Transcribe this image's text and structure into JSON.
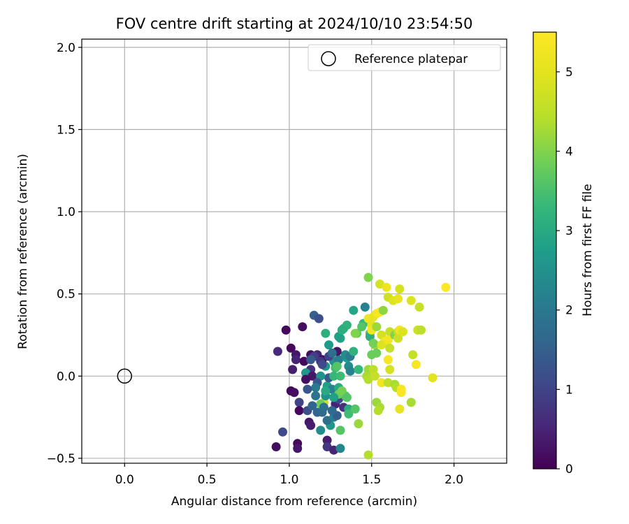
{
  "chart_data": {
    "type": "scatter",
    "title": "FOV centre drift starting at 2024/10/10 23:54:50",
    "xlabel": "Angular distance from reference (arcmin)",
    "ylabel": "Rotation from reference (arcmin)",
    "xlim": [
      -0.26,
      2.32
    ],
    "ylim": [
      -0.53,
      2.05
    ],
    "xticks": [
      0.0,
      0.5,
      1.0,
      1.5,
      2.0
    ],
    "xtick_labels": [
      "0.0",
      "0.5",
      "1.0",
      "1.5",
      "2.0"
    ],
    "yticks": [
      -0.5,
      0.0,
      0.5,
      1.0,
      1.5,
      2.0
    ],
    "ytick_labels": [
      "−0.5",
      "0.0",
      "0.5",
      "1.0",
      "1.5",
      "2.0"
    ],
    "grid": true,
    "legend": {
      "placement": "top-right",
      "entries": [
        "Reference platepar"
      ]
    },
    "reference_point": {
      "x": 0.0,
      "y": 0.0,
      "label": "Reference platepar"
    },
    "colorbar": {
      "label": "Hours from first FF file",
      "range": [
        0,
        5.5
      ],
      "ticks": [
        0,
        1,
        2,
        3,
        4,
        5
      ],
      "tick_labels": [
        "0",
        "1",
        "2",
        "3",
        "4",
        "5"
      ],
      "colormap": "viridis"
    },
    "points": [
      {
        "x": 0.98,
        "y": 0.28,
        "c": 0.1
      },
      {
        "x": 1.08,
        "y": 0.3,
        "c": 0.2
      },
      {
        "x": 1.01,
        "y": 0.17,
        "c": 0.1
      },
      {
        "x": 0.93,
        "y": 0.15,
        "c": 0.6
      },
      {
        "x": 1.04,
        "y": 0.13,
        "c": 0.3
      },
      {
        "x": 1.04,
        "y": 0.1,
        "c": 0.5
      },
      {
        "x": 1.02,
        "y": 0.04,
        "c": 0.4
      },
      {
        "x": 1.13,
        "y": 0.13,
        "c": 0.2
      },
      {
        "x": 1.09,
        "y": 0.09,
        "c": 0.1
      },
      {
        "x": 1.17,
        "y": 0.13,
        "c": 0.5
      },
      {
        "x": 1.2,
        "y": 0.1,
        "c": 0.2
      },
      {
        "x": 1.15,
        "y": 0.37,
        "c": 1.5
      },
      {
        "x": 1.18,
        "y": 0.35,
        "c": 1.2
      },
      {
        "x": 1.15,
        "y": 0.12,
        "c": 0.9
      },
      {
        "x": 1.19,
        "y": 0.09,
        "c": 0.8
      },
      {
        "x": 1.13,
        "y": 0.04,
        "c": 0.7
      },
      {
        "x": 1.1,
        "y": 0.02,
        "c": 2.6
      },
      {
        "x": 1.14,
        "y": 0.0,
        "c": 0.3
      },
      {
        "x": 1.1,
        "y": -0.02,
        "c": 0.2
      },
      {
        "x": 1.01,
        "y": -0.09,
        "c": 0.1
      },
      {
        "x": 1.03,
        "y": -0.1,
        "c": 0.2
      },
      {
        "x": 1.06,
        "y": -0.16,
        "c": 1.0
      },
      {
        "x": 1.06,
        "y": -0.21,
        "c": 0.1
      },
      {
        "x": 1.11,
        "y": -0.21,
        "c": 1.2
      },
      {
        "x": 1.12,
        "y": -0.28,
        "c": 0.3
      },
      {
        "x": 1.13,
        "y": -0.3,
        "c": 0.4
      },
      {
        "x": 0.96,
        "y": -0.34,
        "c": 1.1
      },
      {
        "x": 0.92,
        "y": -0.43,
        "c": 0.2
      },
      {
        "x": 1.05,
        "y": -0.41,
        "c": 0.1
      },
      {
        "x": 1.05,
        "y": -0.44,
        "c": 0.3
      },
      {
        "x": 1.17,
        "y": -0.22,
        "c": 1.6
      },
      {
        "x": 1.2,
        "y": -0.22,
        "c": 1.7
      },
      {
        "x": 1.19,
        "y": -0.33,
        "c": 2.4
      },
      {
        "x": 1.23,
        "y": -0.39,
        "c": 0.4
      },
      {
        "x": 1.23,
        "y": -0.43,
        "c": 0.8
      },
      {
        "x": 1.27,
        "y": -0.45,
        "c": 0.5
      },
      {
        "x": 1.31,
        "y": -0.44,
        "c": 2.3
      },
      {
        "x": 1.31,
        "y": -0.33,
        "c": 3.6
      },
      {
        "x": 1.25,
        "y": -0.3,
        "c": 2.6
      },
      {
        "x": 1.23,
        "y": -0.27,
        "c": 1.8
      },
      {
        "x": 1.27,
        "y": -0.25,
        "c": 2.1
      },
      {
        "x": 1.29,
        "y": -0.24,
        "c": 1.5
      },
      {
        "x": 1.28,
        "y": -0.17,
        "c": 0.5
      },
      {
        "x": 1.3,
        "y": -0.14,
        "c": 1.1
      },
      {
        "x": 1.33,
        "y": -0.19,
        "c": 0.7
      },
      {
        "x": 1.36,
        "y": -0.2,
        "c": 3.0
      },
      {
        "x": 1.36,
        "y": -0.23,
        "c": 3.4
      },
      {
        "x": 1.34,
        "y": -0.12,
        "c": 3.5
      },
      {
        "x": 1.21,
        "y": -0.16,
        "c": 4.6
      },
      {
        "x": 1.19,
        "y": -0.17,
        "c": 3.8
      },
      {
        "x": 1.22,
        "y": -0.12,
        "c": 2.5
      },
      {
        "x": 1.23,
        "y": -0.06,
        "c": 2.8
      },
      {
        "x": 1.26,
        "y": -0.08,
        "c": 2.2
      },
      {
        "x": 1.3,
        "y": -0.07,
        "c": 3.0
      },
      {
        "x": 1.3,
        "y": -0.11,
        "c": 3.8
      },
      {
        "x": 1.24,
        "y": -0.01,
        "c": 1.4
      },
      {
        "x": 1.19,
        "y": 0.0,
        "c": 2.5
      },
      {
        "x": 1.17,
        "y": -0.04,
        "c": 1.3
      },
      {
        "x": 1.22,
        "y": 0.06,
        "c": 2.6
      },
      {
        "x": 1.28,
        "y": 0.05,
        "c": 3.4
      },
      {
        "x": 1.27,
        "y": 0.0,
        "c": 3.3
      },
      {
        "x": 1.27,
        "y": 0.09,
        "c": 2.5
      },
      {
        "x": 1.3,
        "y": 0.1,
        "c": 2.1
      },
      {
        "x": 1.35,
        "y": 0.11,
        "c": 2.7
      },
      {
        "x": 1.36,
        "y": 0.06,
        "c": 2.4
      },
      {
        "x": 1.37,
        "y": 0.03,
        "c": 2.2
      },
      {
        "x": 1.34,
        "y": 0.13,
        "c": 2.4
      },
      {
        "x": 1.37,
        "y": 0.12,
        "c": 2.0
      },
      {
        "x": 1.29,
        "y": 0.15,
        "c": 0.3
      },
      {
        "x": 1.31,
        "y": 0.23,
        "c": 2.9
      },
      {
        "x": 1.24,
        "y": 0.19,
        "c": 2.7
      },
      {
        "x": 1.22,
        "y": 0.26,
        "c": 3.1
      },
      {
        "x": 1.3,
        "y": 0.24,
        "c": 2.8
      },
      {
        "x": 1.33,
        "y": 0.29,
        "c": 3.0
      },
      {
        "x": 1.35,
        "y": 0.31,
        "c": 3.2
      },
      {
        "x": 1.39,
        "y": 0.4,
        "c": 2.9
      },
      {
        "x": 1.46,
        "y": 0.42,
        "c": 2.2
      },
      {
        "x": 1.45,
        "y": 0.32,
        "c": 3.3
      },
      {
        "x": 1.41,
        "y": 0.26,
        "c": 3.7
      },
      {
        "x": 1.39,
        "y": 0.15,
        "c": 3.2
      },
      {
        "x": 1.42,
        "y": 0.04,
        "c": 3.3
      },
      {
        "x": 1.4,
        "y": -0.2,
        "c": 3.6
      },
      {
        "x": 1.42,
        "y": -0.29,
        "c": 4.2
      },
      {
        "x": 1.48,
        "y": -0.48,
        "c": 4.4
      },
      {
        "x": 1.48,
        "y": 0.6,
        "c": 4.0
      },
      {
        "x": 1.49,
        "y": 0.26,
        "c": 3.5
      },
      {
        "x": 1.48,
        "y": 0.35,
        "c": 5.2
      },
      {
        "x": 1.49,
        "y": 0.24,
        "c": 3.1
      },
      {
        "x": 1.5,
        "y": 0.13,
        "c": 3.8
      },
      {
        "x": 1.52,
        "y": 0.19,
        "c": 4.2
      },
      {
        "x": 1.53,
        "y": 0.14,
        "c": 3.8
      },
      {
        "x": 1.51,
        "y": 0.2,
        "c": 3.9
      },
      {
        "x": 1.5,
        "y": 0.31,
        "c": 5.0
      },
      {
        "x": 1.5,
        "y": 0.28,
        "c": 5.3
      },
      {
        "x": 1.51,
        "y": 0.36,
        "c": 5.1
      },
      {
        "x": 1.53,
        "y": 0.38,
        "c": 5.3
      },
      {
        "x": 1.55,
        "y": 0.39,
        "c": 5.4
      },
      {
        "x": 1.53,
        "y": 0.3,
        "c": 4.2
      },
      {
        "x": 1.56,
        "y": 0.25,
        "c": 4.8
      },
      {
        "x": 1.55,
        "y": 0.56,
        "c": 4.8
      },
      {
        "x": 1.57,
        "y": 0.4,
        "c": 4.1
      },
      {
        "x": 1.59,
        "y": 0.54,
        "c": 5.2
      },
      {
        "x": 1.6,
        "y": 0.48,
        "c": 4.7
      },
      {
        "x": 1.61,
        "y": 0.27,
        "c": 4.6
      },
      {
        "x": 1.58,
        "y": 0.21,
        "c": 5.4
      },
      {
        "x": 1.56,
        "y": 0.19,
        "c": 4.9
      },
      {
        "x": 1.6,
        "y": 0.22,
        "c": 5.3
      },
      {
        "x": 1.61,
        "y": 0.17,
        "c": 4.6
      },
      {
        "x": 1.64,
        "y": 0.25,
        "c": 4.0
      },
      {
        "x": 1.66,
        "y": 0.27,
        "c": 4.5
      },
      {
        "x": 1.66,
        "y": 0.23,
        "c": 4.7
      },
      {
        "x": 1.67,
        "y": 0.28,
        "c": 5.3
      },
      {
        "x": 1.69,
        "y": 0.27,
        "c": 4.9
      },
      {
        "x": 1.63,
        "y": 0.46,
        "c": 4.9
      },
      {
        "x": 1.66,
        "y": 0.47,
        "c": 5.1
      },
      {
        "x": 1.67,
        "y": 0.53,
        "c": 4.8
      },
      {
        "x": 1.74,
        "y": 0.46,
        "c": 4.9
      },
      {
        "x": 1.79,
        "y": 0.42,
        "c": 4.6
      },
      {
        "x": 1.75,
        "y": 0.13,
        "c": 4.6
      },
      {
        "x": 1.77,
        "y": 0.07,
        "c": 5.4
      },
      {
        "x": 1.78,
        "y": 0.28,
        "c": 4.7
      },
      {
        "x": 1.8,
        "y": 0.28,
        "c": 4.5
      },
      {
        "x": 1.74,
        "y": -0.16,
        "c": 4.3
      },
      {
        "x": 1.87,
        "y": -0.01,
        "c": 5.0
      },
      {
        "x": 1.95,
        "y": 0.54,
        "c": 5.5
      },
      {
        "x": 1.6,
        "y": 0.1,
        "c": 5.4
      },
      {
        "x": 1.61,
        "y": 0.04,
        "c": 4.8
      },
      {
        "x": 1.56,
        "y": -0.04,
        "c": 5.3
      },
      {
        "x": 1.6,
        "y": -0.04,
        "c": 4.5
      },
      {
        "x": 1.64,
        "y": -0.05,
        "c": 4.3
      },
      {
        "x": 1.65,
        "y": -0.07,
        "c": 4.4
      },
      {
        "x": 1.68,
        "y": -0.08,
        "c": 5.4
      },
      {
        "x": 1.68,
        "y": -0.1,
        "c": 5.4
      },
      {
        "x": 1.67,
        "y": -0.2,
        "c": 5.1
      },
      {
        "x": 1.53,
        "y": -0.16,
        "c": 4.2
      },
      {
        "x": 1.55,
        "y": -0.19,
        "c": 4.3
      },
      {
        "x": 1.54,
        "y": -0.21,
        "c": 4.4
      },
      {
        "x": 1.48,
        "y": 0.04,
        "c": 4.2
      },
      {
        "x": 1.47,
        "y": 0.0,
        "c": 4.3
      },
      {
        "x": 1.48,
        "y": -0.02,
        "c": 4.4
      },
      {
        "x": 1.51,
        "y": 0.04,
        "c": 4.5
      },
      {
        "x": 1.52,
        "y": 0.0,
        "c": 4.6
      },
      {
        "x": 1.4,
        "y": 0.26,
        "c": 4.0
      },
      {
        "x": 1.44,
        "y": 0.3,
        "c": 3.6
      },
      {
        "x": 1.32,
        "y": 0.28,
        "c": 3.1
      },
      {
        "x": 1.29,
        "y": 0.06,
        "c": 3.6
      },
      {
        "x": 1.31,
        "y": 0.0,
        "c": 3.4
      },
      {
        "x": 1.32,
        "y": -0.09,
        "c": 3.9
      },
      {
        "x": 1.35,
        "y": -0.13,
        "c": 3.6
      },
      {
        "x": 1.27,
        "y": -0.13,
        "c": 2.8
      },
      {
        "x": 1.22,
        "y": -0.09,
        "c": 3.0
      },
      {
        "x": 1.16,
        "y": -0.07,
        "c": 2.0
      },
      {
        "x": 1.16,
        "y": -0.12,
        "c": 1.9
      },
      {
        "x": 1.14,
        "y": -0.18,
        "c": 1.6
      },
      {
        "x": 1.21,
        "y": -0.19,
        "c": 1.8
      },
      {
        "x": 1.26,
        "y": -0.21,
        "c": 1.7
      },
      {
        "x": 1.11,
        "y": -0.08,
        "c": 1.3
      },
      {
        "x": 1.13,
        "y": 0.1,
        "c": 1.4
      },
      {
        "x": 1.2,
        "y": 0.07,
        "c": 1.1
      },
      {
        "x": 1.24,
        "y": 0.12,
        "c": 1.0
      },
      {
        "x": 1.26,
        "y": 0.14,
        "c": 1.8
      }
    ]
  }
}
